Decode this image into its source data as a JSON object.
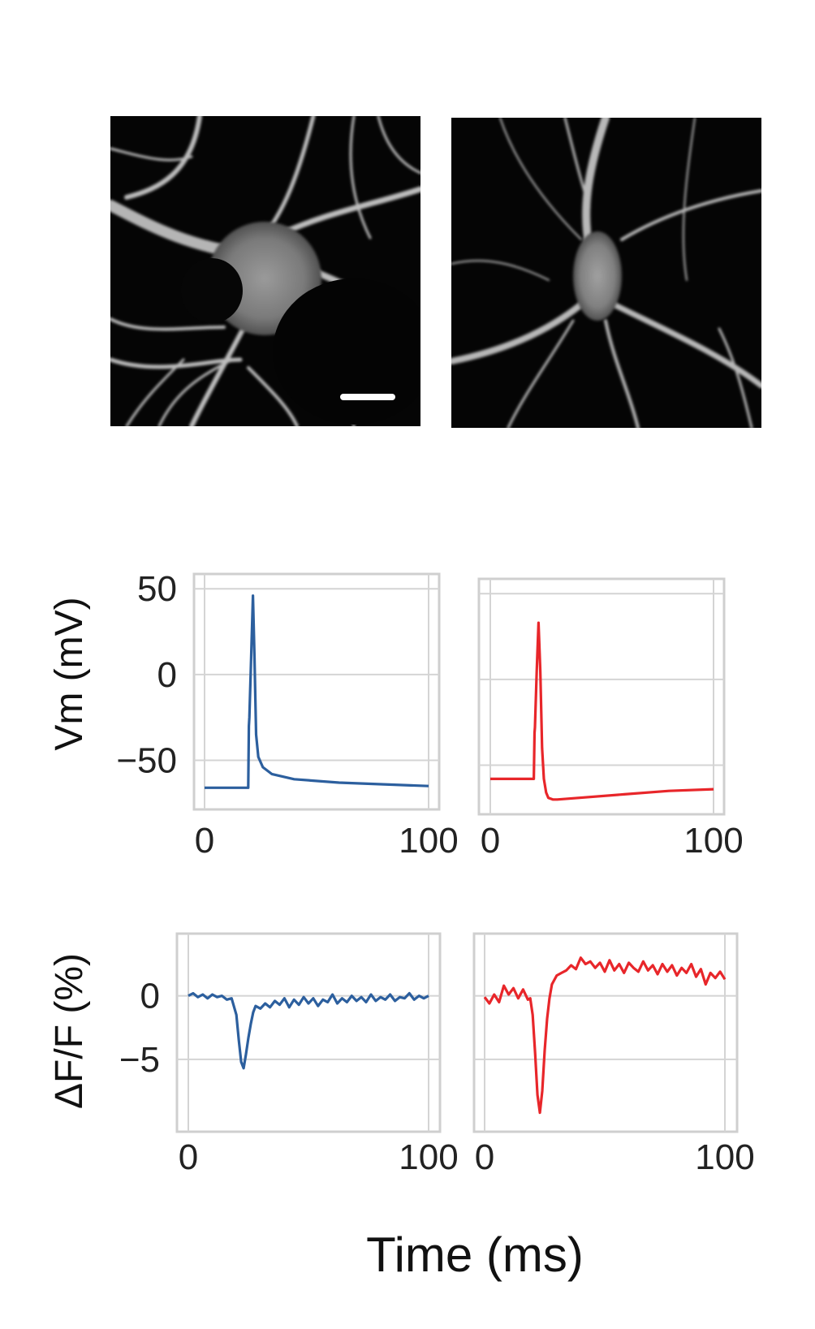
{
  "figure": {
    "micrographs": [
      {
        "name": "neuron-micrograph-left",
        "has_scale_bar": true
      },
      {
        "name": "neuron-micrograph-right",
        "has_scale_bar": false
      }
    ],
    "xlabel": "Time (ms)"
  },
  "chart_data": [
    {
      "type": "line",
      "ylabel": "Vm (mV)",
      "xlim": [
        0,
        100
      ],
      "ylim": [
        -72,
        52
      ],
      "xticks": [
        0,
        100
      ],
      "yticks": [
        50,
        0,
        -50
      ],
      "xtick_labels": [
        "0",
        "100"
      ],
      "ytick_labels": [
        "50",
        "0",
        "−50"
      ],
      "grid": true,
      "series": [
        {
          "color": "#2c5f9e",
          "x": [
            0,
            19.5,
            19.8,
            20,
            20.8,
            21.6,
            22.3,
            23,
            24,
            26,
            30,
            40,
            60,
            80,
            100
          ],
          "y": [
            -66,
            -66,
            -30,
            -25,
            10,
            46,
            10,
            -35,
            -48,
            -54,
            -58,
            -61,
            -63,
            -64,
            -65
          ]
        }
      ]
    },
    {
      "type": "line",
      "ylabel": "",
      "xlim": [
        0,
        100
      ],
      "ylim": [
        -72,
        52
      ],
      "xticks": [
        0,
        100
      ],
      "yticks": [
        50,
        0,
        -50
      ],
      "xtick_labels": [
        "0",
        "100"
      ],
      "ytick_labels": [],
      "grid": true,
      "series": [
        {
          "color": "#e8262a",
          "x": [
            0,
            19.5,
            19.8,
            20,
            20.8,
            21.6,
            22.4,
            23.2,
            24,
            25,
            26,
            28,
            30,
            40,
            60,
            80,
            100
          ],
          "y": [
            -58,
            -58,
            -31,
            -28,
            5,
            33,
            5,
            -40,
            -58,
            -66,
            -69,
            -70,
            -70,
            -69,
            -67,
            -65,
            -64
          ]
        }
      ]
    },
    {
      "type": "line",
      "ylabel": "ΔF/F (%)",
      "xlim": [
        0,
        100
      ],
      "ylim": [
        -9.8,
        4.0
      ],
      "xticks": [
        0,
        100
      ],
      "yticks": [
        0,
        -5
      ],
      "xtick_labels": [
        "0",
        "100"
      ],
      "ytick_labels": [
        "0",
        "−5"
      ],
      "grid": true,
      "series": [
        {
          "color": "#2c5f9e",
          "x": [
            0,
            2,
            4,
            6,
            8,
            10,
            12,
            14,
            16,
            18,
            20,
            21,
            22,
            23,
            24,
            25,
            26,
            27,
            28,
            30,
            32,
            34,
            36,
            38,
            40,
            42,
            44,
            46,
            48,
            50,
            52,
            54,
            56,
            58,
            60,
            62,
            64,
            66,
            68,
            70,
            72,
            74,
            76,
            78,
            80,
            82,
            84,
            86,
            88,
            90,
            92,
            94,
            96,
            98,
            100
          ],
          "y": [
            0,
            0.2,
            -0.1,
            0.1,
            -0.2,
            0.1,
            -0.1,
            0,
            -0.3,
            -0.2,
            -1.5,
            -3.5,
            -5.2,
            -5.7,
            -4.6,
            -3.3,
            -2.2,
            -1.3,
            -0.8,
            -1.0,
            -0.6,
            -0.9,
            -0.4,
            -0.7,
            -0.2,
            -0.9,
            -0.3,
            -0.7,
            -0.1,
            -0.6,
            -0.2,
            -0.8,
            -0.3,
            -0.5,
            0.1,
            -0.6,
            -0.2,
            -0.5,
            0,
            -0.4,
            -0.1,
            -0.5,
            0.1,
            -0.4,
            -0.1,
            -0.3,
            0.1,
            -0.4,
            -0.1,
            -0.2,
            0.2,
            -0.3,
            0,
            -0.2,
            0
          ]
        }
      ]
    },
    {
      "type": "line",
      "ylabel": "",
      "xlim": [
        0,
        100
      ],
      "ylim": [
        -9.8,
        4.0
      ],
      "xticks": [
        0,
        100
      ],
      "yticks": [
        0,
        -5
      ],
      "xtick_labels": [
        "0",
        "100"
      ],
      "ytick_labels": [],
      "grid": true,
      "series": [
        {
          "color": "#e8262a",
          "x": [
            0,
            2,
            4,
            6,
            8,
            10,
            12,
            14,
            16,
            18,
            19,
            20,
            21,
            22,
            23,
            24,
            25,
            26,
            27,
            28,
            30,
            32,
            34,
            36,
            38,
            40,
            42,
            44,
            46,
            48,
            50,
            52,
            54,
            56,
            58,
            60,
            62,
            64,
            66,
            68,
            70,
            72,
            74,
            76,
            78,
            80,
            82,
            84,
            86,
            88,
            90,
            92,
            94,
            96,
            98,
            100
          ],
          "y": [
            -0.1,
            -0.6,
            0.1,
            -0.5,
            0.8,
            0.1,
            0.6,
            -0.2,
            0.5,
            -0.3,
            -0.2,
            -1.5,
            -4.5,
            -7.8,
            -9.2,
            -7.5,
            -4.3,
            -1.8,
            -0.2,
            0.9,
            1.6,
            1.8,
            2.0,
            2.4,
            2.1,
            3.0,
            2.5,
            2.7,
            2.2,
            2.6,
            1.9,
            2.8,
            2.0,
            2.5,
            1.8,
            2.6,
            2.2,
            1.9,
            2.7,
            2.0,
            2.4,
            1.7,
            2.5,
            1.9,
            2.4,
            1.6,
            2.2,
            1.8,
            2.5,
            1.5,
            2.1,
            0.9,
            1.8,
            1.4,
            1.9,
            1.3
          ]
        }
      ]
    }
  ]
}
